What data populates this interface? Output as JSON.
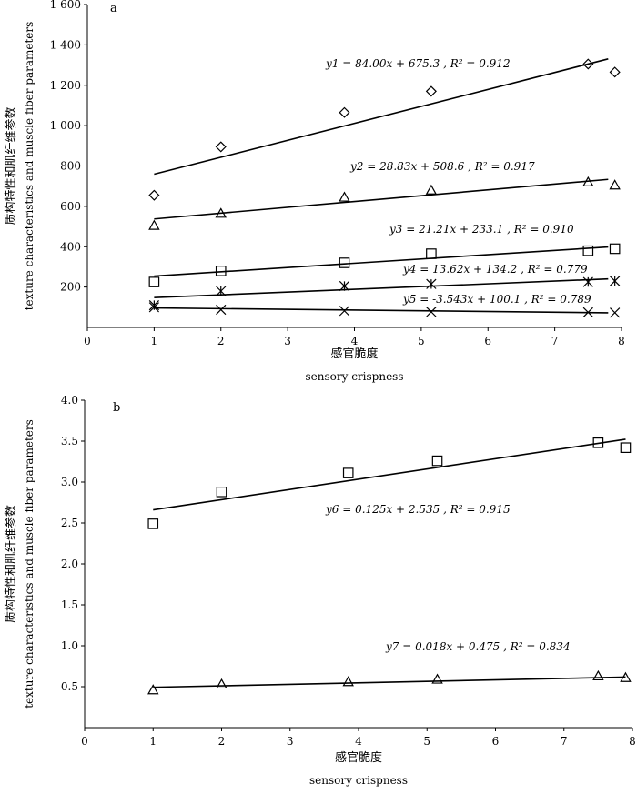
{
  "chart_data": [
    {
      "type": "scatter",
      "panel_label": "a",
      "xlabel_cn": "感官脆度",
      "xlabel_en": "sensory crispness",
      "ylabel_cn": "质构特性和肌纤维参数",
      "ylabel_en": "texture characteristics and muscle fiber parameters",
      "xlim": [
        0,
        8
      ],
      "ylim": [
        0,
        1600
      ],
      "x_ticks": [
        0,
        1,
        2,
        3,
        4,
        5,
        6,
        7,
        8
      ],
      "y_ticks": [
        200,
        400,
        600,
        800,
        1000,
        1200,
        1400,
        1600
      ],
      "y_tick_labels": [
        "200",
        "400",
        "600",
        "800",
        "1 000",
        "1 200",
        "1 400",
        "1 600"
      ],
      "grid": false,
      "series": [
        {
          "marker": "diamond",
          "x": [
            1.0,
            2.0,
            3.85,
            5.15,
            7.5,
            7.9
          ],
          "y": [
            655,
            895,
            1065,
            1170,
            1305,
            1265
          ],
          "fit": {
            "slope": 84.0,
            "intercept": 675.3,
            "x_range": [
              1.0,
              7.8
            ]
          },
          "equation": "y1 = 84.00x + 675.3 ,  R² = 0.912"
        },
        {
          "marker": "triangle",
          "x": [
            1.0,
            2.0,
            3.85,
            5.15,
            7.5,
            7.9
          ],
          "y": [
            505,
            565,
            645,
            680,
            720,
            705
          ],
          "fit": {
            "slope": 28.83,
            "intercept": 508.6,
            "x_range": [
              1.0,
              7.8
            ]
          },
          "equation": "y2 = 28.83x + 508.6 ,  R² = 0.917"
        },
        {
          "marker": "square",
          "x": [
            1.0,
            2.0,
            3.85,
            5.15,
            7.5,
            7.9
          ],
          "y": [
            225,
            280,
            320,
            365,
            380,
            390
          ],
          "fit": {
            "slope": 21.21,
            "intercept": 233.1,
            "x_range": [
              1.0,
              7.8
            ]
          },
          "equation": "y3 = 21.21x + 233.1 ,  R² = 0.910"
        },
        {
          "marker": "asterisk",
          "x": [
            1.0,
            2.0,
            3.85,
            5.15,
            7.5,
            7.9
          ],
          "y": [
            110,
            180,
            205,
            215,
            225,
            230
          ],
          "fit": {
            "slope": 13.62,
            "intercept": 134.2,
            "x_range": [
              1.0,
              7.8
            ]
          },
          "equation": "y4 = 13.62x + 134.2 ,  R² = 0.779"
        },
        {
          "marker": "x",
          "x": [
            1.0,
            2.0,
            3.85,
            5.15,
            7.5,
            7.9
          ],
          "y": [
            100,
            88,
            82,
            77,
            75,
            73
          ],
          "fit": {
            "slope": -3.543,
            "intercept": 100.1,
            "x_range": [
              1.0,
              7.8
            ]
          },
          "equation": "y5 = -3.543x + 100.1 ,  R² = 0.789"
        }
      ]
    },
    {
      "type": "scatter",
      "panel_label": "b",
      "xlabel_cn": "感官脆度",
      "xlabel_en": "sensory crispness",
      "ylabel_cn": "质构特性和肌纤维参数",
      "ylabel_en": "texture characteristics and muscle fiber parameters",
      "xlim": [
        0,
        8
      ],
      "ylim": [
        0,
        4.0
      ],
      "x_ticks": [
        0,
        1,
        2,
        3,
        4,
        5,
        6,
        7,
        8
      ],
      "y_ticks": [
        0.5,
        1.0,
        1.5,
        2.0,
        2.5,
        3.0,
        3.5,
        4.0
      ],
      "y_tick_labels": [
        "0.5",
        "1.0",
        "1.5",
        "2.0",
        "2.5",
        "3.0",
        "3.5",
        "4.0"
      ],
      "grid": false,
      "series": [
        {
          "marker": "square",
          "x": [
            1.0,
            2.0,
            3.85,
            5.15,
            7.5,
            7.9
          ],
          "y": [
            2.49,
            2.88,
            3.11,
            3.26,
            3.48,
            3.42
          ],
          "fit": {
            "slope": 0.125,
            "intercept": 2.535,
            "x_range": [
              1.0,
              7.9
            ]
          },
          "equation": "y6 = 0.125x + 2.535 ,  R² = 0.915"
        },
        {
          "marker": "triangle",
          "x": [
            1.0,
            2.0,
            3.85,
            5.15,
            7.5,
            7.9
          ],
          "y": [
            0.46,
            0.53,
            0.56,
            0.59,
            0.63,
            0.61
          ],
          "fit": {
            "slope": 0.018,
            "intercept": 0.475,
            "x_range": [
              1.0,
              7.9
            ]
          },
          "equation": "y7 = 0.018x + 0.475 ,  R² = 0.834"
        }
      ]
    }
  ]
}
